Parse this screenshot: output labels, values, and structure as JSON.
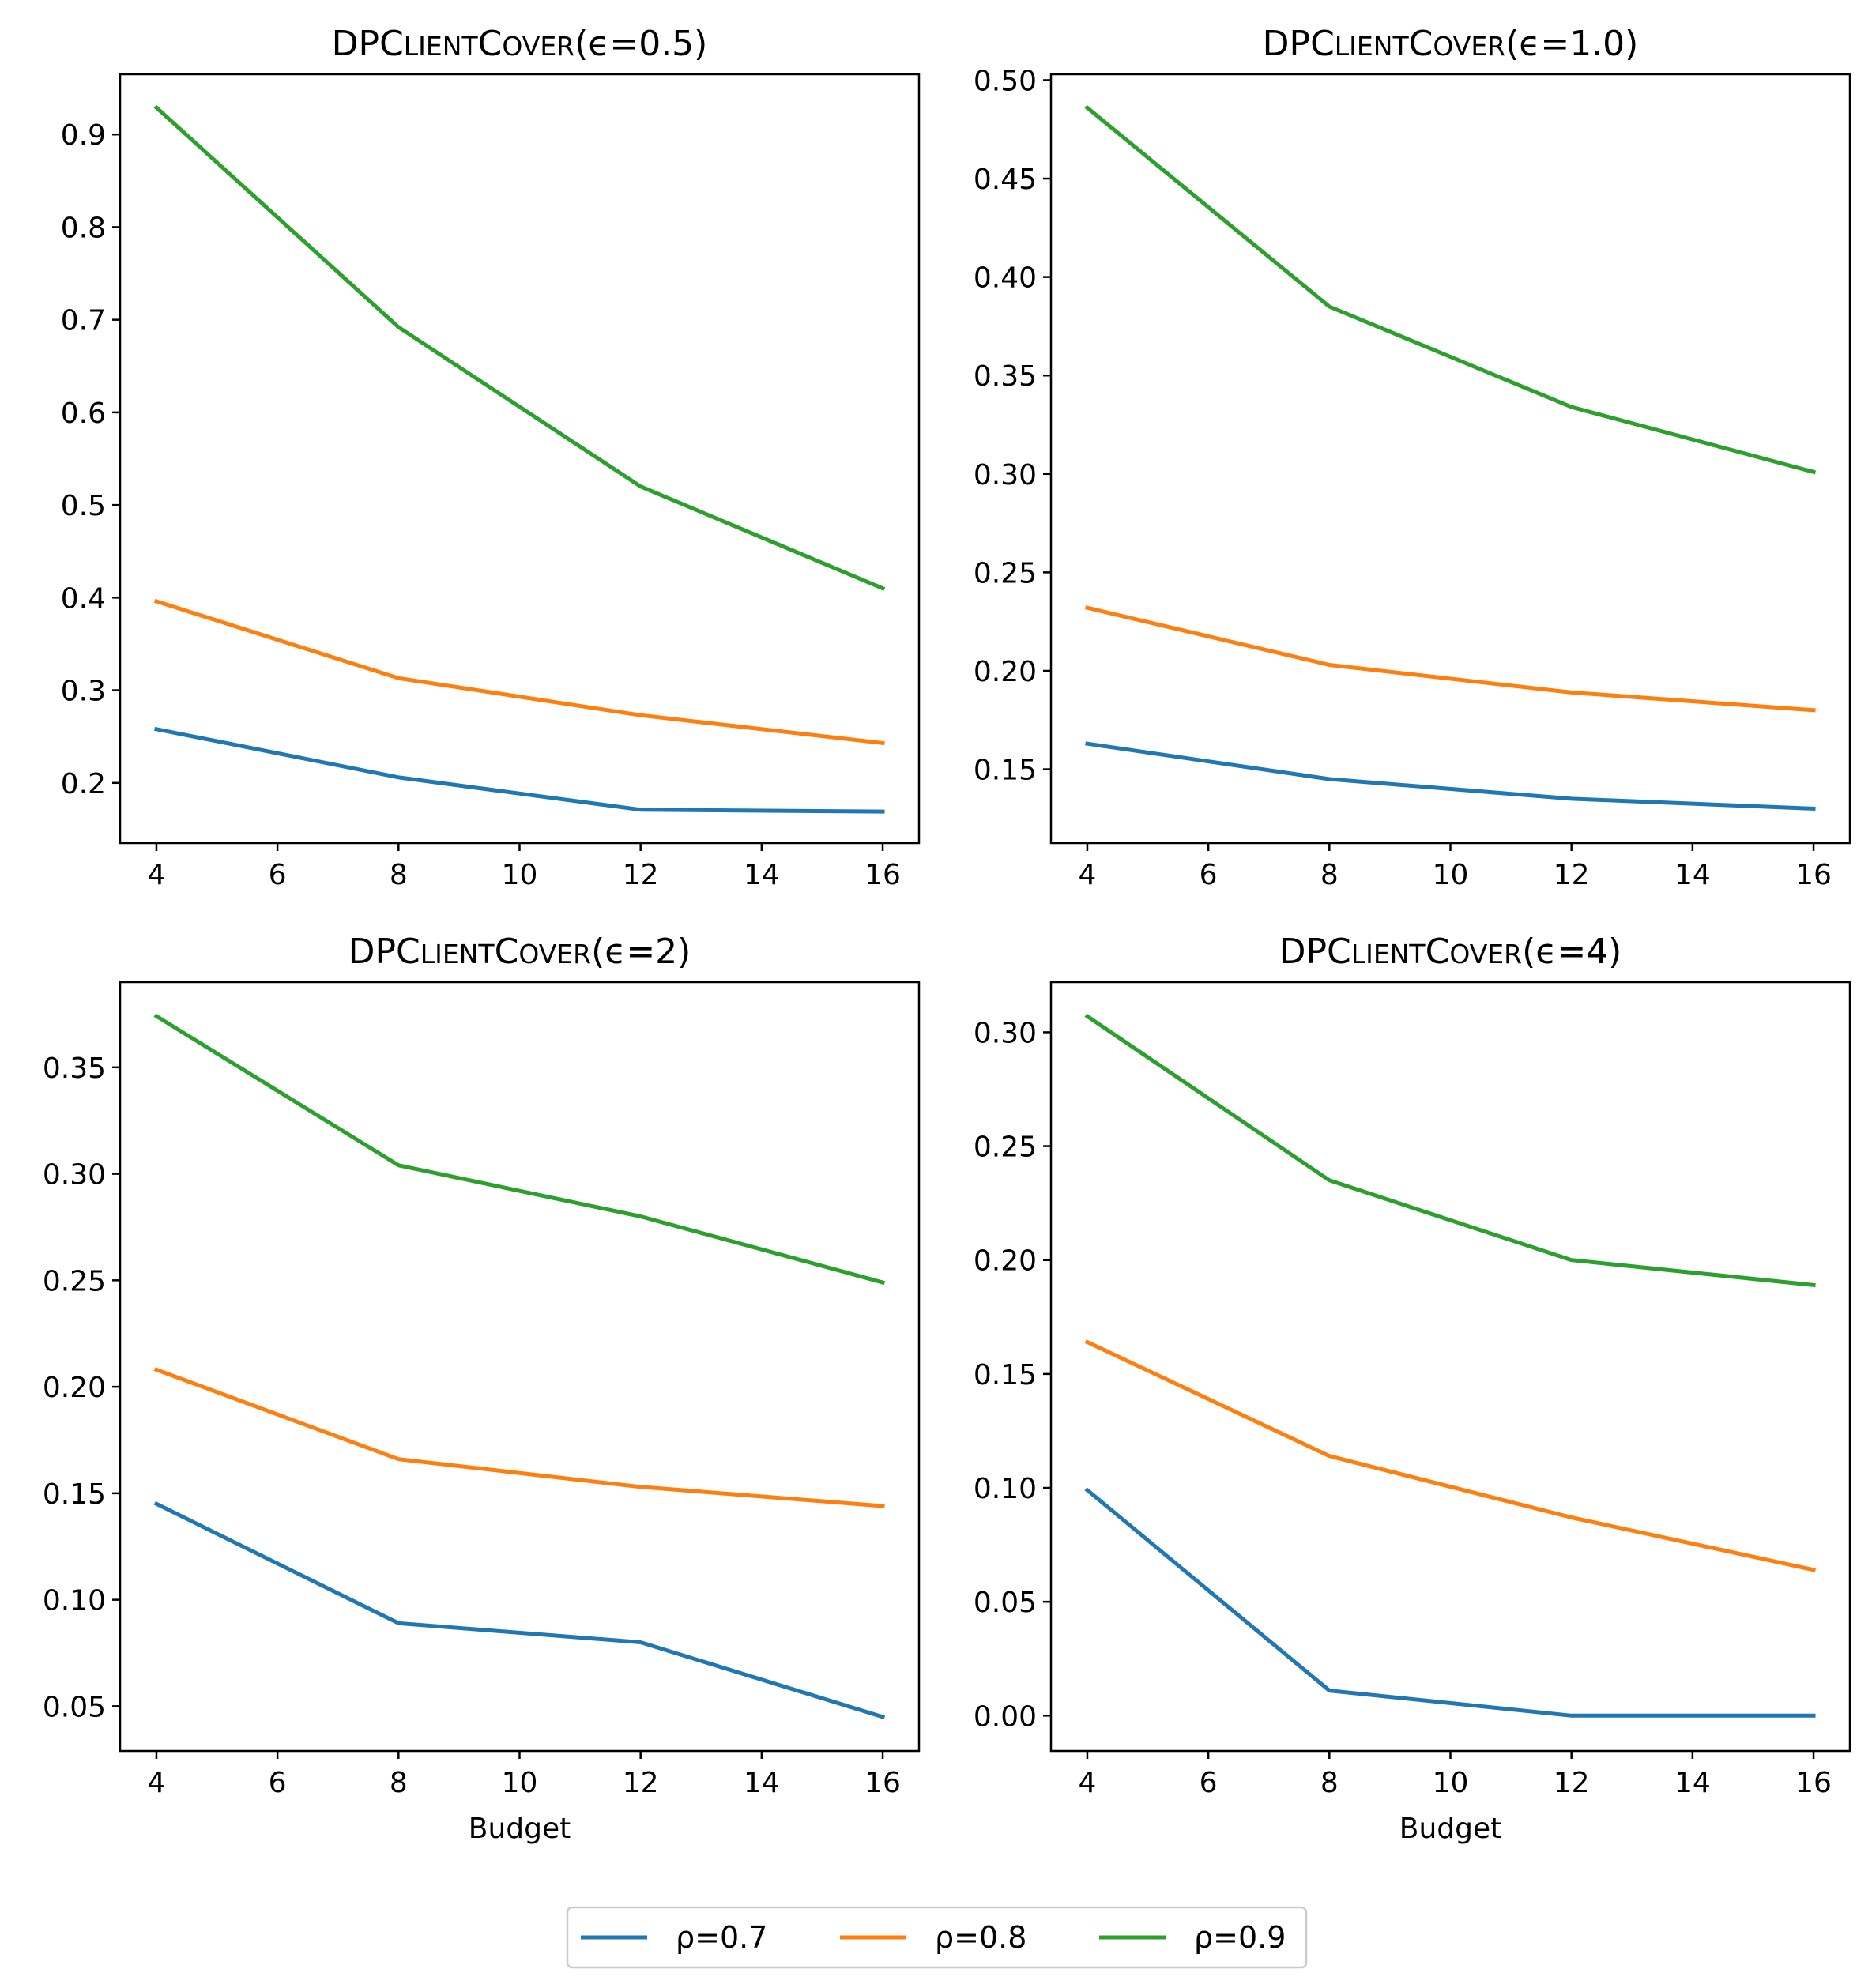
{
  "chart_data": [
    {
      "type": "line",
      "title": "DPClientCover(ε=0.5)",
      "title_parts": {
        "prefix": "DPC",
        "smallcaps": "lient",
        "mid": "C",
        "smallcaps2": "over",
        "suffix": "(ϵ=0.5)"
      },
      "xlabel": "",
      "ylabel": "",
      "x": [
        4,
        8,
        12,
        16
      ],
      "xticks": [
        "4",
        "6",
        "8",
        "10",
        "12",
        "14",
        "16"
      ],
      "xlim": [
        3.4,
        16.6
      ],
      "yticks": [
        "0.2",
        "0.3",
        "0.4",
        "0.5",
        "0.6",
        "0.7",
        "0.8",
        "0.9"
      ],
      "ylim": [
        0.135,
        0.965
      ],
      "series": [
        {
          "name": "ρ=0.7",
          "color": "#1f77b4",
          "values": [
            0.258,
            0.206,
            0.171,
            0.169
          ]
        },
        {
          "name": "ρ=0.8",
          "color": "#ff7f0e",
          "values": [
            0.396,
            0.313,
            0.273,
            0.243
          ]
        },
        {
          "name": "ρ=0.9",
          "color": "#2ca02c",
          "values": [
            0.929,
            0.692,
            0.52,
            0.41
          ]
        }
      ]
    },
    {
      "type": "line",
      "title": "DPClientCover(ε=1.0)",
      "title_parts": {
        "prefix": "DPC",
        "smallcaps": "lient",
        "mid": "C",
        "smallcaps2": "over",
        "suffix": "(ϵ=1.0)"
      },
      "xlabel": "",
      "ylabel": "",
      "x": [
        4,
        8,
        12,
        16
      ],
      "xticks": [
        "4",
        "6",
        "8",
        "10",
        "12",
        "14",
        "16"
      ],
      "xlim": [
        3.4,
        16.6
      ],
      "yticks": [
        "0.15",
        "0.20",
        "0.25",
        "0.30",
        "0.35",
        "0.40",
        "0.45",
        "0.50"
      ],
      "ylim": [
        0.1125,
        0.503
      ],
      "series": [
        {
          "name": "ρ=0.7",
          "color": "#1f77b4",
          "values": [
            0.163,
            0.145,
            0.135,
            0.13
          ]
        },
        {
          "name": "ρ=0.8",
          "color": "#ff7f0e",
          "values": [
            0.232,
            0.203,
            0.189,
            0.18
          ]
        },
        {
          "name": "ρ=0.9",
          "color": "#2ca02c",
          "values": [
            0.486,
            0.385,
            0.334,
            0.301
          ]
        }
      ]
    },
    {
      "type": "line",
      "title": "DPClientCover(ε=2)",
      "title_parts": {
        "prefix": "DPC",
        "smallcaps": "lient",
        "mid": "C",
        "smallcaps2": "over",
        "suffix": "(ϵ=2)"
      },
      "xlabel": "Budget",
      "ylabel": "",
      "x": [
        4,
        8,
        12,
        16
      ],
      "xticks": [
        "4",
        "6",
        "8",
        "10",
        "12",
        "14",
        "16"
      ],
      "xlim": [
        3.4,
        16.6
      ],
      "yticks": [
        "0.05",
        "0.10",
        "0.15",
        "0.20",
        "0.25",
        "0.30",
        "0.35"
      ],
      "ylim": [
        0.029,
        0.39
      ],
      "series": [
        {
          "name": "ρ=0.7",
          "color": "#1f77b4",
          "values": [
            0.145,
            0.089,
            0.08,
            0.045
          ]
        },
        {
          "name": "ρ=0.8",
          "color": "#ff7f0e",
          "values": [
            0.208,
            0.166,
            0.153,
            0.144
          ]
        },
        {
          "name": "ρ=0.9",
          "color": "#2ca02c",
          "values": [
            0.374,
            0.304,
            0.28,
            0.249
          ]
        }
      ]
    },
    {
      "type": "line",
      "title": "DPClientCover(ε=4)",
      "title_parts": {
        "prefix": "DPC",
        "smallcaps": "lient",
        "mid": "C",
        "smallcaps2": "over",
        "suffix": "(ϵ=4)"
      },
      "xlabel": "Budget",
      "ylabel": "",
      "x": [
        4,
        8,
        12,
        16
      ],
      "xticks": [
        "4",
        "6",
        "8",
        "10",
        "12",
        "14",
        "16"
      ],
      "xlim": [
        3.4,
        16.6
      ],
      "yticks": [
        "0.00",
        "0.05",
        "0.10",
        "0.15",
        "0.20",
        "0.25",
        "0.30"
      ],
      "ylim": [
        -0.0155,
        0.322
      ],
      "series": [
        {
          "name": "ρ=0.7",
          "color": "#1f77b4",
          "values": [
            0.099,
            0.011,
            0.0,
            0.0
          ]
        },
        {
          "name": "ρ=0.8",
          "color": "#ff7f0e",
          "values": [
            0.164,
            0.114,
            0.087,
            0.064
          ]
        },
        {
          "name": "ρ=0.9",
          "color": "#2ca02c",
          "values": [
            0.307,
            0.235,
            0.2,
            0.189
          ]
        }
      ]
    }
  ],
  "legend": {
    "placement": "bottom-center",
    "entries": [
      {
        "label": "ρ=0.7",
        "color": "#1f77b4"
      },
      {
        "label": "ρ=0.8",
        "color": "#ff7f0e"
      },
      {
        "label": "ρ=0.9",
        "color": "#2ca02c"
      }
    ]
  }
}
